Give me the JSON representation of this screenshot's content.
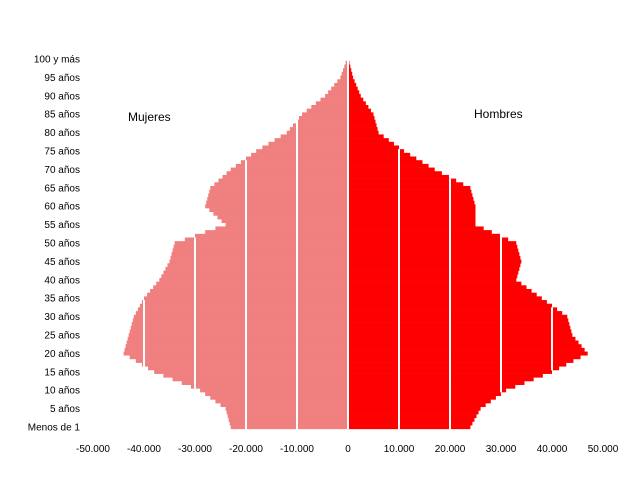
{
  "chart_data": {
    "type": "bar",
    "orientation": "horizontal",
    "layout": "population-pyramid",
    "panel_labels": {
      "left": "Mujeres",
      "right": "Hombres"
    },
    "y_tick_labels": [
      "100 y más",
      "95 años",
      "90 años",
      "85 años",
      "80 años",
      "75 años",
      "70 años",
      "65 años",
      "60 años",
      "55 años",
      "50 años",
      "45 años",
      "40 años",
      "35 años",
      "30 años",
      "25 años",
      "20 años",
      "15 años",
      "10 años",
      "5 años",
      "Menos de 1"
    ],
    "x_tick_labels": [
      "-50.000",
      "-40.000",
      "-30.000",
      "-20.000",
      "-10.000",
      "0",
      "10.000",
      "20.000",
      "30.000",
      "40.000",
      "50.000"
    ],
    "x_ticks": [
      -50000,
      -40000,
      -30000,
      -20000,
      -10000,
      0,
      10000,
      20000,
      30000,
      40000,
      50000
    ],
    "xlim": [
      -50000,
      50000
    ],
    "ages": [
      0,
      5,
      10,
      15,
      20,
      25,
      30,
      35,
      40,
      45,
      50,
      55,
      60,
      65,
      70,
      75,
      80,
      85,
      90,
      95,
      100
    ],
    "series": [
      {
        "name": "Mujeres",
        "side": "left",
        "color": "#f08080",
        "values": [
          23000,
          24000,
          29000,
          38000,
          44000,
          43000,
          42000,
          40000,
          37000,
          35000,
          34000,
          24000,
          28000,
          27000,
          23000,
          18000,
          12000,
          9000,
          4500,
          1500,
          200
        ]
      },
      {
        "name": "Hombres",
        "side": "right",
        "color": "#ff0000",
        "values": [
          24000,
          26000,
          31000,
          40000,
          47000,
          44000,
          43000,
          38000,
          33000,
          34000,
          33000,
          25000,
          25000,
          24000,
          17000,
          11000,
          6000,
          5000,
          2500,
          1000,
          100
        ]
      }
    ],
    "gridlines": "white vertical lines at every 10.000 inside bars",
    "grid": false,
    "legend": "none"
  }
}
